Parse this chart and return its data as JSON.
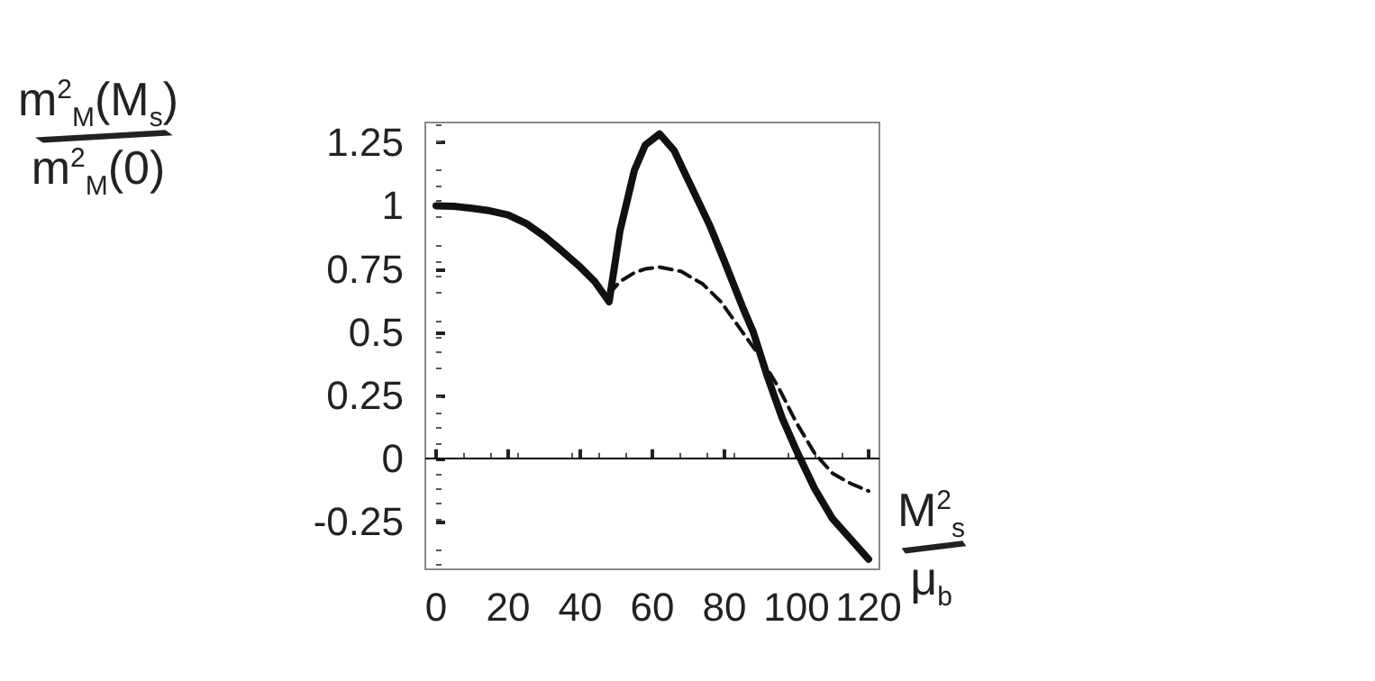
{
  "chart_data": {
    "type": "line",
    "ylabel": "m$^{2}$$_{M}$(M$_{s}$)/m$^{2}$$_{M}$(0)",
    "xlabel": "M$^{2}$$_{s}$/μ$_{b}$",
    "xlim": [
      -3,
      123
    ],
    "xticks": [
      0,
      20,
      40,
      60,
      80,
      100,
      120
    ],
    "ylim": [
      -0.44,
      1.33
    ],
    "yticks": [
      -0.25,
      0,
      0.25,
      0.5,
      0.75,
      1,
      1.25
    ],
    "grid": false,
    "marker": "none",
    "ref_lines": [
      {
        "axis": "y",
        "value": 0,
        "color": "#000000",
        "line_style": "solid"
      }
    ],
    "series": [
      {
        "color": "#111111",
        "line_style": "solid",
        "x": [
          0,
          5,
          10,
          15,
          20,
          25,
          30,
          35,
          40,
          44,
          48,
          51,
          55,
          58,
          62,
          66,
          70,
          76,
          80,
          85,
          88,
          92,
          96,
          100,
          105,
          110,
          115,
          120
        ],
        "values": [
          1,
          0.998,
          0.99,
          0.98,
          0.964,
          0.93,
          0.88,
          0.82,
          0.757,
          0.7,
          0.62,
          0.9,
          1.14,
          1.24,
          1.285,
          1.22,
          1.1,
          0.92,
          0.78,
          0.6,
          0.5,
          0.32,
          0.16,
          0.03,
          -0.12,
          -0.24,
          -0.32,
          -0.4
        ]
      },
      {
        "color": "#111111",
        "line_style": "dashed",
        "x": [
          48,
          51,
          55,
          58,
          62,
          68,
          74,
          79,
          85,
          90,
          95,
          100,
          105,
          110,
          115,
          120
        ],
        "values": [
          0.65,
          0.7,
          0.735,
          0.75,
          0.757,
          0.74,
          0.69,
          0.62,
          0.5,
          0.4,
          0.28,
          0.14,
          0.02,
          -0.06,
          -0.1,
          -0.13
        ]
      }
    ]
  }
}
